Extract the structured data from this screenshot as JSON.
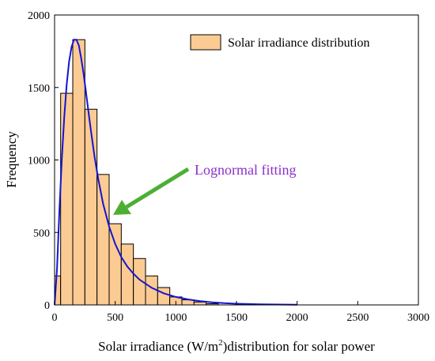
{
  "chart_data": {
    "type": "bar",
    "xlabel": "Solar irradiance (W/m",
    "xlabel_sup": "2",
    "xlabel_tail": ")distribution for solar power",
    "ylabel": "Frequency",
    "xlim": [
      0,
      3000
    ],
    "ylim": [
      0,
      2000
    ],
    "xticks": [
      0,
      500,
      1000,
      1500,
      2000,
      2500,
      3000
    ],
    "yticks": [
      0,
      500,
      1000,
      1500,
      2000
    ],
    "legend": {
      "label": "Solar irradiance distribution",
      "position": "top-right"
    },
    "bin_width": 100,
    "bins": [
      {
        "x0": 0,
        "x1": 50,
        "value": 200
      },
      {
        "x0": 50,
        "x1": 150,
        "value": 1460
      },
      {
        "x0": 150,
        "x1": 250,
        "value": 1830
      },
      {
        "x0": 250,
        "x1": 350,
        "value": 1350
      },
      {
        "x0": 350,
        "x1": 450,
        "value": 900
      },
      {
        "x0": 450,
        "x1": 550,
        "value": 560
      },
      {
        "x0": 550,
        "x1": 650,
        "value": 420
      },
      {
        "x0": 650,
        "x1": 750,
        "value": 320
      },
      {
        "x0": 750,
        "x1": 850,
        "value": 200
      },
      {
        "x0": 850,
        "x1": 950,
        "value": 120
      },
      {
        "x0": 950,
        "x1": 1050,
        "value": 55
      },
      {
        "x0": 1050,
        "x1": 1150,
        "value": 35
      },
      {
        "x0": 1150,
        "x1": 1250,
        "value": 20
      },
      {
        "x0": 1250,
        "x1": 1350,
        "value": 8
      }
    ],
    "series": [
      {
        "name": "Lognormal fitting",
        "x": [
          0,
          20,
          40,
          60,
          80,
          100,
          120,
          140,
          160,
          180,
          200,
          220,
          240,
          260,
          280,
          300,
          330,
          360,
          400,
          450,
          500,
          550,
          600,
          650,
          700,
          800,
          900,
          1000,
          1100,
          1200,
          1300,
          1400,
          1500,
          1700,
          2000
        ],
        "y": [
          0,
          250,
          650,
          1010,
          1300,
          1520,
          1680,
          1780,
          1830,
          1830,
          1790,
          1700,
          1590,
          1460,
          1330,
          1200,
          1020,
          870,
          700,
          540,
          420,
          330,
          265,
          215,
          175,
          118,
          80,
          55,
          38,
          26,
          18,
          12,
          8,
          4,
          1
        ]
      }
    ],
    "annotation": {
      "text": "Lognormal fitting",
      "color": "#8B2FC9",
      "arrow_color": "#4CAF34",
      "target_x": 480,
      "target_y": 620
    },
    "colors": {
      "bar_fill": "#FCCB93",
      "bar_stroke": "#000000",
      "curve": "#1414D2"
    }
  }
}
